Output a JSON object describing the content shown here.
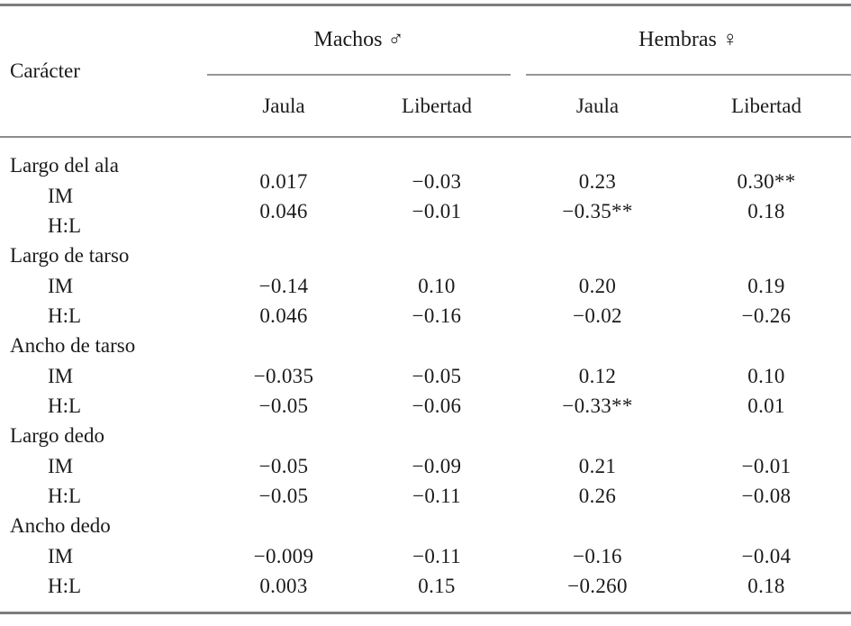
{
  "table": {
    "header": {
      "caracter": "Carácter",
      "group_machos": "Machos ♂",
      "group_hembras": "Hembras ♀",
      "sub": [
        "Jaula",
        "Libertad",
        "Jaula",
        "Libertad"
      ]
    },
    "blocks": [
      {
        "label": "Largo del ala",
        "rows": [
          {
            "label": "IM",
            "values": [
              "0.017",
              "−0.03",
              "0.23",
              "0.30**"
            ]
          },
          {
            "label": "H:L",
            "values": [
              "0.046",
              "−0.01",
              "−0.35**",
              "0.18"
            ]
          }
        ]
      },
      {
        "label": "Largo de tarso",
        "rows": [
          {
            "label": "IM",
            "values": [
              "−0.14",
              "0.10",
              "0.20",
              "0.19"
            ]
          },
          {
            "label": "H:L",
            "values": [
              "0.046",
              "−0.16",
              "−0.02",
              "−0.26"
            ]
          }
        ]
      },
      {
        "label": "Ancho de tarso",
        "rows": [
          {
            "label": "IM",
            "values": [
              "−0.035",
              "−0.05",
              "0.12",
              "0.10"
            ]
          },
          {
            "label": "H:L",
            "values": [
              "−0.05",
              "−0.06",
              "−0.33**",
              "0.01"
            ]
          }
        ]
      },
      {
        "label": "Largo dedo",
        "rows": [
          {
            "label": "IM",
            "values": [
              "−0.05",
              "−0.09",
              "0.21",
              "−0.01"
            ]
          },
          {
            "label": "H:L",
            "values": [
              "−0.05",
              "−0.11",
              "0.26",
              "−0.08"
            ]
          }
        ]
      },
      {
        "label": "Ancho dedo",
        "rows": [
          {
            "label": "IM",
            "values": [
              "−0.009",
              "−0.11",
              "−0.16",
              "−0.04"
            ]
          },
          {
            "label": "H:L",
            "values": [
              "0.003",
              "0.15",
              "−0.260",
              "0.18"
            ]
          }
        ]
      }
    ],
    "colors": {
      "text": "#1b1b1b",
      "rule_heavy": "#7d7d7d",
      "rule_light": "#969696",
      "background": "#ffffff"
    }
  },
  "chart_data": {
    "type": "table",
    "title": "",
    "columns": [
      "Carácter",
      "Machos Jaula",
      "Machos Libertad",
      "Hembras Jaula",
      "Hembras Libertad"
    ],
    "rows": [
      [
        "Largo del ala — IM",
        "0.017",
        "−0.03",
        "0.23",
        "0.30**"
      ],
      [
        "Largo del ala — H:L",
        "0.046",
        "−0.01",
        "−0.35**",
        "0.18"
      ],
      [
        "Largo de tarso — IM",
        "−0.14",
        "0.10",
        "0.20",
        "0.19"
      ],
      [
        "Largo de tarso — H:L",
        "0.046",
        "−0.16",
        "−0.02",
        "−0.26"
      ],
      [
        "Ancho de tarso — IM",
        "−0.035",
        "−0.05",
        "0.12",
        "0.10"
      ],
      [
        "Ancho de tarso — H:L",
        "−0.05",
        "−0.06",
        "−0.33**",
        "0.01"
      ],
      [
        "Largo dedo — IM",
        "−0.05",
        "−0.09",
        "0.21",
        "−0.01"
      ],
      [
        "Largo dedo — H:L",
        "−0.05",
        "−0.11",
        "0.26",
        "−0.08"
      ],
      [
        "Ancho dedo — IM",
        "−0.009",
        "−0.11",
        "−0.16",
        "−0.04"
      ],
      [
        "Ancho dedo — H:L",
        "0.003",
        "0.15",
        "−0.260",
        "0.18"
      ]
    ]
  }
}
